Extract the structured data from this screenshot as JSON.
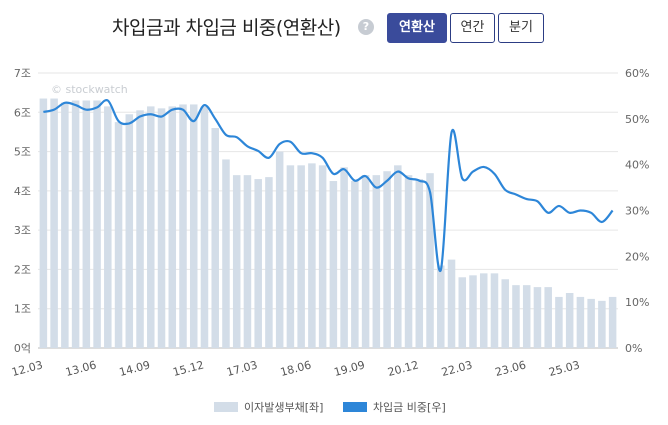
{
  "header": {
    "title": "차입금과 차입금 비중(연환산)",
    "help_icon": "?",
    "buttons": {
      "annualized": "연환산",
      "yearly": "연간",
      "quarterly": "분기"
    }
  },
  "chart_data": {
    "type": "bar+line",
    "watermark": "© stockwatch",
    "x_tick_labels": [
      "12.03",
      "13.06",
      "14.09",
      "15.12",
      "17.03",
      "18.06",
      "19.09",
      "20.12",
      "22.03",
      "23.06",
      "25.03"
    ],
    "y_left": {
      "ticks": [
        "0억",
        "1조",
        "2조",
        "3조",
        "4조",
        "5조",
        "6조",
        "7조"
      ],
      "ylim": [
        0,
        7
      ],
      "unit": "조"
    },
    "y_right": {
      "ticks": [
        "0%",
        "10%",
        "20%",
        "30%",
        "40%",
        "50%",
        "60%"
      ],
      "ylim": [
        0,
        60
      ],
      "unit": "%"
    },
    "series": [
      {
        "name": "이자발생부채[좌]",
        "axis": "left",
        "kind": "bar",
        "color": "#d3dde8",
        "values": [
          6.35,
          6.35,
          6.25,
          6.3,
          6.3,
          6.3,
          6.15,
          5.75,
          5.95,
          6.05,
          6.15,
          6.1,
          6.15,
          6.2,
          6.2,
          6.15,
          5.6,
          4.8,
          4.4,
          4.4,
          4.3,
          4.35,
          5.0,
          4.65,
          4.65,
          4.7,
          4.65,
          4.25,
          4.6,
          4.25,
          4.4,
          4.4,
          4.5,
          4.65,
          4.4,
          4.3,
          4.45,
          2.1,
          2.25,
          1.8,
          1.85,
          1.9,
          1.9,
          1.75,
          1.6,
          1.6,
          1.55,
          1.55,
          1.3,
          1.4,
          1.3,
          1.25,
          1.2,
          1.3
        ]
      },
      {
        "name": "차입금 비중[우]",
        "axis": "right",
        "kind": "line",
        "color": "#2d86d8",
        "values": [
          51.5,
          52,
          53.5,
          53,
          52,
          52.5,
          54,
          49.5,
          49,
          50.5,
          51,
          50.5,
          52,
          52,
          49.5,
          53,
          50,
          46.5,
          46,
          44,
          43,
          41.5,
          44.5,
          45,
          42.5,
          42.5,
          41.5,
          38,
          39,
          36.5,
          37.5,
          35,
          36.5,
          38.5,
          37,
          36.5,
          34,
          17,
          47,
          37,
          38.5,
          39.5,
          38,
          34.5,
          33.5,
          32.5,
          32,
          29.5,
          31,
          29.5,
          30,
          29.5,
          27.5,
          30
        ]
      }
    ]
  }
}
